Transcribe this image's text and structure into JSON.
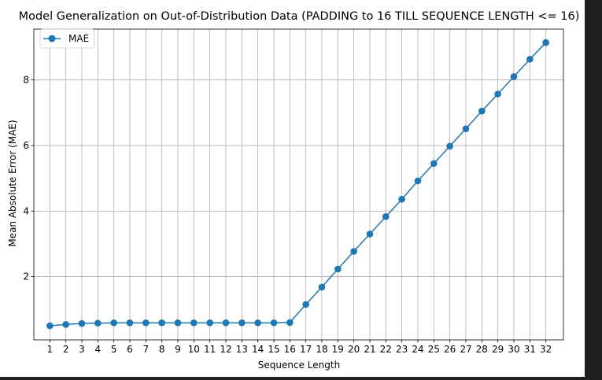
{
  "chart_data": {
    "type": "line",
    "title": "Model Generalization on Out-of-Distribution Data (PADDING to 16 TILL SEQUENCE LENGTH <= 16)",
    "xlabel": "Sequence Length",
    "ylabel": "Mean Absolute Error (MAE)",
    "x": [
      1,
      2,
      3,
      4,
      5,
      6,
      7,
      8,
      9,
      10,
      11,
      12,
      13,
      14,
      15,
      16,
      17,
      18,
      19,
      20,
      21,
      22,
      23,
      24,
      25,
      26,
      27,
      28,
      29,
      30,
      31,
      32
    ],
    "x_tick_labels": [
      "1",
      "2",
      "3",
      "4",
      "5",
      "6",
      "7",
      "8",
      "9",
      "10",
      "11",
      "12",
      "13",
      "14",
      "15",
      "16",
      "17",
      "18",
      "19",
      "20",
      "21",
      "22",
      "23",
      "24",
      "25",
      "26",
      "27",
      "28",
      "29",
      "30",
      "31",
      "32"
    ],
    "y_ticks": [
      2,
      4,
      6,
      8
    ],
    "y_tick_labels": [
      "2",
      "4",
      "6",
      "8"
    ],
    "xlim": [
      0.0,
      33.1
    ],
    "ylim": [
      0.07,
      9.55
    ],
    "grid": true,
    "legend_position": "upper-left",
    "series": [
      {
        "name": "MAE",
        "color": "#1f77b4",
        "marker": "circle",
        "values": [
          0.5,
          0.54,
          0.57,
          0.58,
          0.59,
          0.59,
          0.59,
          0.59,
          0.59,
          0.59,
          0.59,
          0.59,
          0.59,
          0.59,
          0.59,
          0.6,
          1.15,
          1.68,
          2.23,
          2.77,
          3.3,
          3.83,
          4.36,
          4.92,
          5.45,
          5.98,
          6.51,
          7.05,
          7.57,
          8.1,
          8.63,
          9.14
        ]
      }
    ]
  }
}
